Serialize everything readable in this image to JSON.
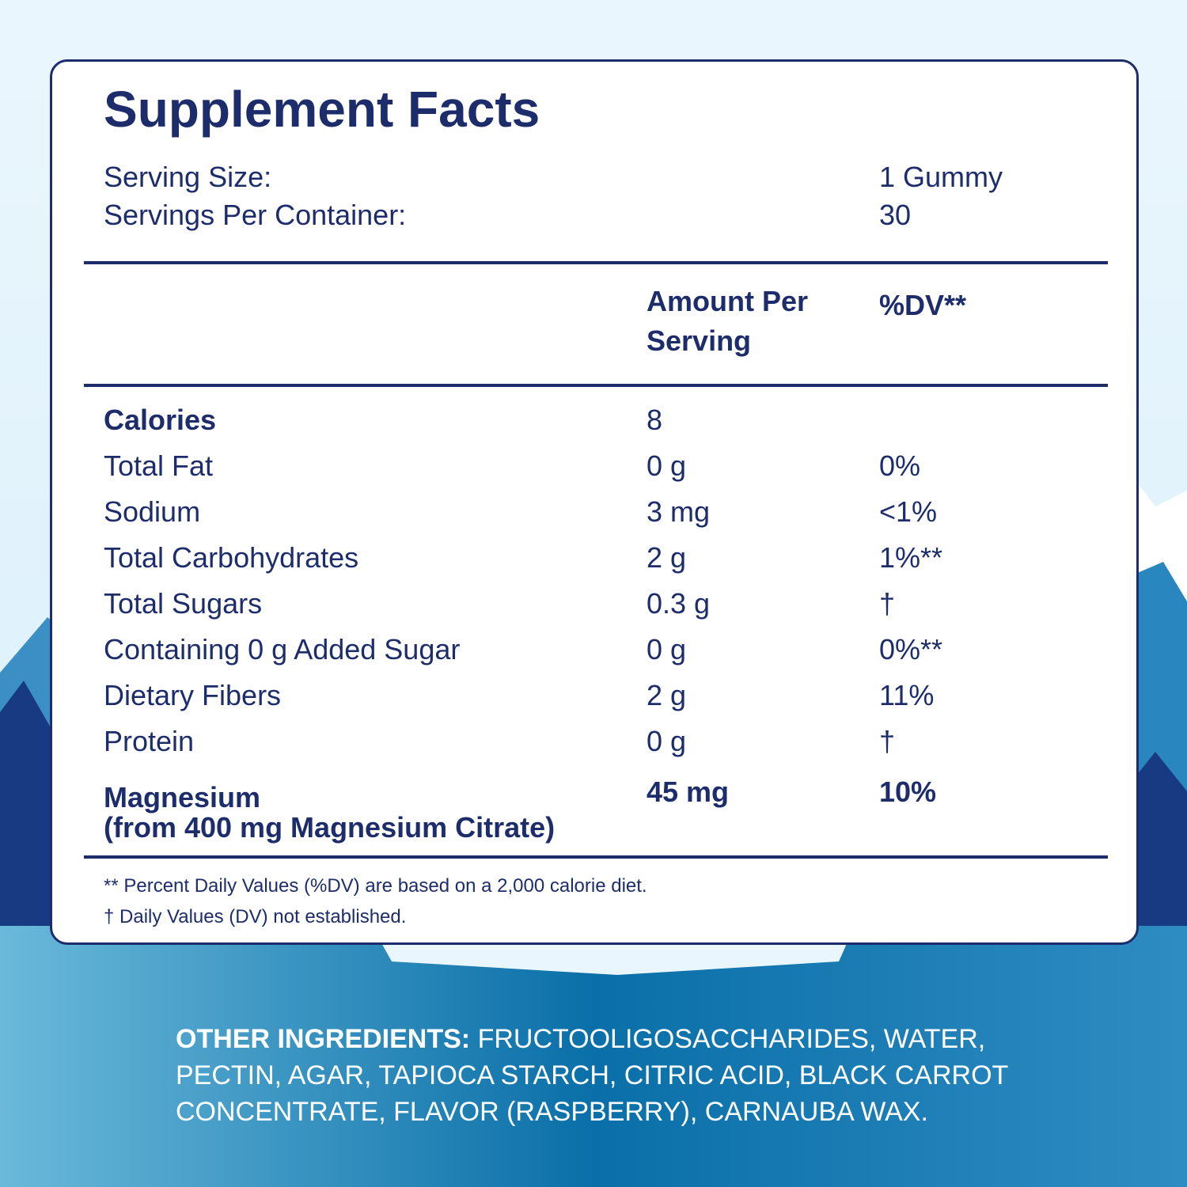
{
  "title": "Supplement Facts",
  "serving": [
    {
      "label": "Serving Size:",
      "value": "1 Gummy"
    },
    {
      "label": "Servings Per Container:",
      "value": "30"
    }
  ],
  "table": {
    "header": [
      "Amount Per Serving",
      "%DV**"
    ],
    "rows": [
      {
        "name": "Calories",
        "amount": "8",
        "bold": true
      },
      {
        "name": "Total Fat",
        "amount": "0 g",
        "dv": "0%"
      },
      {
        "name": "Sodium",
        "amount": "3 mg",
        "dv": "<1%"
      },
      {
        "name": "Total Carbohydrates",
        "amount": "2 g",
        "dv": "1%**"
      },
      {
        "name": "Total Sugars",
        "amount": "0.3 g",
        "dv": "†"
      },
      {
        "name": "Containing 0 g Added Sugar",
        "amount": "0 g",
        "dv": "0%**"
      },
      {
        "name": "Dietary Fibers",
        "amount": "2 g",
        "dv": "11%"
      },
      {
        "name": "Protein",
        "amount": "0 g",
        "dv": "†"
      }
    ],
    "feature": {
      "name": "Magnesium",
      "source": "(from 400 mg Magnesium Citrate)",
      "amount": "45 mg",
      "dv": "10%"
    }
  },
  "footnotes": [
    "** Percent Daily Values (%DV) are based on a 2,000 calorie diet.",
    "† Daily Values (DV) not established."
  ],
  "ingredients": {
    "label": "OTHER INGREDIENTS:",
    "text": "FRUCTOOLIGOSACCHARIDES, WATER, PECTIN, AGAR, TAPIOCA STARCH, CITRIC ACID, BLACK CARROT CONCENTRATE, FLAVOR (RASPBERRY), CARNAUBA WAX."
  }
}
